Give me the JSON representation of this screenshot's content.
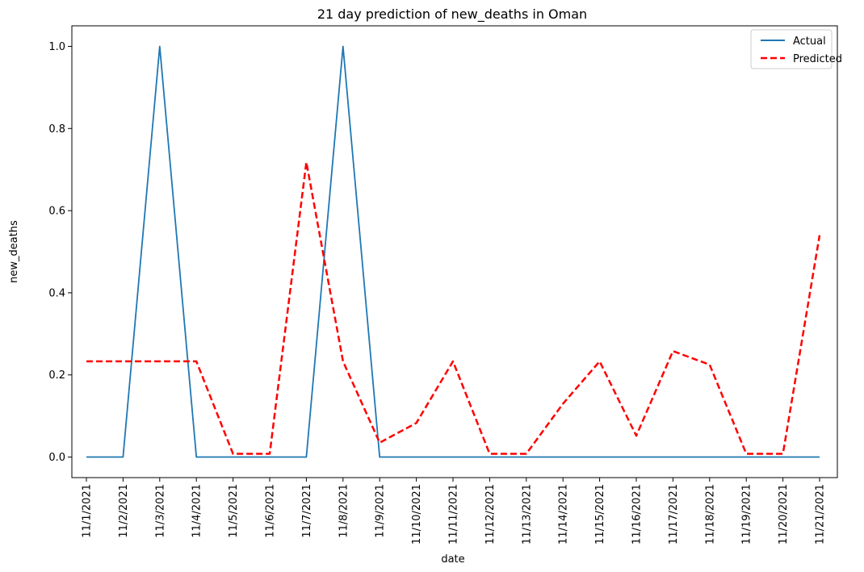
{
  "chart_data": {
    "type": "line",
    "title": "21 day prediction of new_deaths in Oman",
    "xlabel": "date",
    "ylabel": "new_deaths",
    "categories": [
      "11/1/2021",
      "11/2/2021",
      "11/3/2021",
      "11/4/2021",
      "11/5/2021",
      "11/6/2021",
      "11/7/2021",
      "11/8/2021",
      "11/9/2021",
      "11/10/2021",
      "11/11/2021",
      "11/12/2021",
      "11/13/2021",
      "11/14/2021",
      "11/15/2021",
      "11/16/2021",
      "11/17/2021",
      "11/18/2021",
      "11/19/2021",
      "11/20/2021",
      "11/21/2021"
    ],
    "ylim": [
      -0.05,
      1.05
    ],
    "yticks": [
      "0.0",
      "0.2",
      "0.4",
      "0.6",
      "0.8",
      "1.0"
    ],
    "grid": false,
    "legend_position": "top-right",
    "series": [
      {
        "name": "Actual",
        "color": "#1f77b4",
        "style": "solid",
        "values": [
          0,
          0,
          1,
          0,
          0,
          0,
          0,
          1,
          0,
          0,
          0,
          0,
          0,
          0,
          0,
          0,
          0,
          0,
          0,
          0,
          0
        ]
      },
      {
        "name": "Predicted",
        "color": "#ff0000",
        "style": "dashed",
        "values": [
          0.233,
          0.233,
          0.233,
          0.233,
          0.008,
          0.008,
          0.718,
          0.233,
          0.035,
          0.083,
          0.233,
          0.008,
          0.008,
          0.13,
          0.233,
          0.052,
          0.258,
          0.225,
          0.008,
          0.008,
          0.54
        ]
      }
    ]
  }
}
